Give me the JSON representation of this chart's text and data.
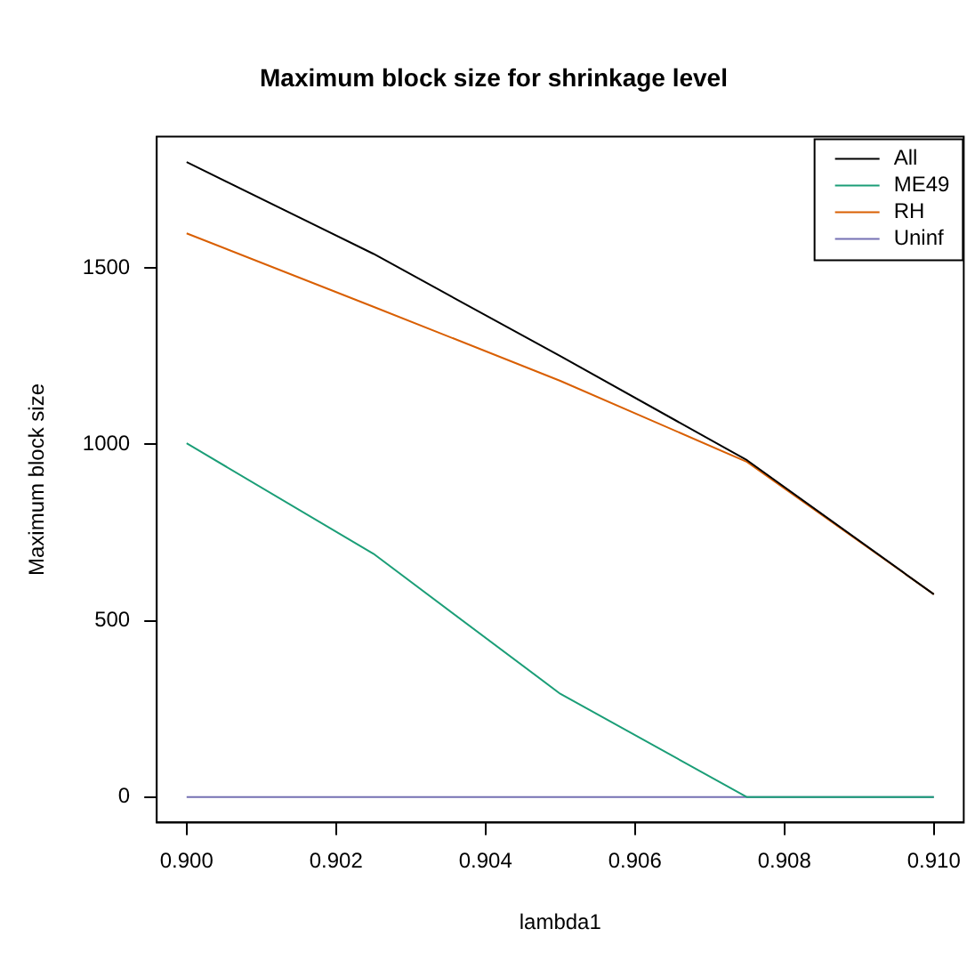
{
  "chart_data": {
    "type": "line",
    "title": "Maximum block size for shrinkage level",
    "xlabel": "lambda1",
    "ylabel": "Maximum block size",
    "x": [
      0.9,
      0.9025,
      0.905,
      0.9075,
      0.91
    ],
    "series": [
      {
        "name": "All",
        "color": "#000000",
        "values": [
          1800,
          1540,
          1250,
          955,
          575
        ]
      },
      {
        "name": "ME49",
        "color": "#1b9e77",
        "values": [
          1003,
          690,
          293,
          0,
          0
        ]
      },
      {
        "name": "RH",
        "color": "#d95f02",
        "values": [
          1598,
          1390,
          1180,
          950,
          575
        ]
      },
      {
        "name": "Uninf",
        "color": "#7570b3",
        "values": [
          0,
          0,
          0,
          0,
          0
        ]
      }
    ],
    "xlim": [
      0.8996,
      0.9104
    ],
    "ylim": [
      -72,
      1872
    ],
    "xticks": [
      {
        "value": 0.9,
        "label": "0.900"
      },
      {
        "value": 0.902,
        "label": "0.902"
      },
      {
        "value": 0.904,
        "label": "0.904"
      },
      {
        "value": 0.906,
        "label": "0.906"
      },
      {
        "value": 0.908,
        "label": "0.908"
      },
      {
        "value": 0.91,
        "label": "0.910"
      }
    ],
    "yticks": [
      0,
      500,
      1000,
      1500
    ],
    "legend": "top right",
    "grid": false,
    "marker": "none",
    "line_style": "solid"
  }
}
